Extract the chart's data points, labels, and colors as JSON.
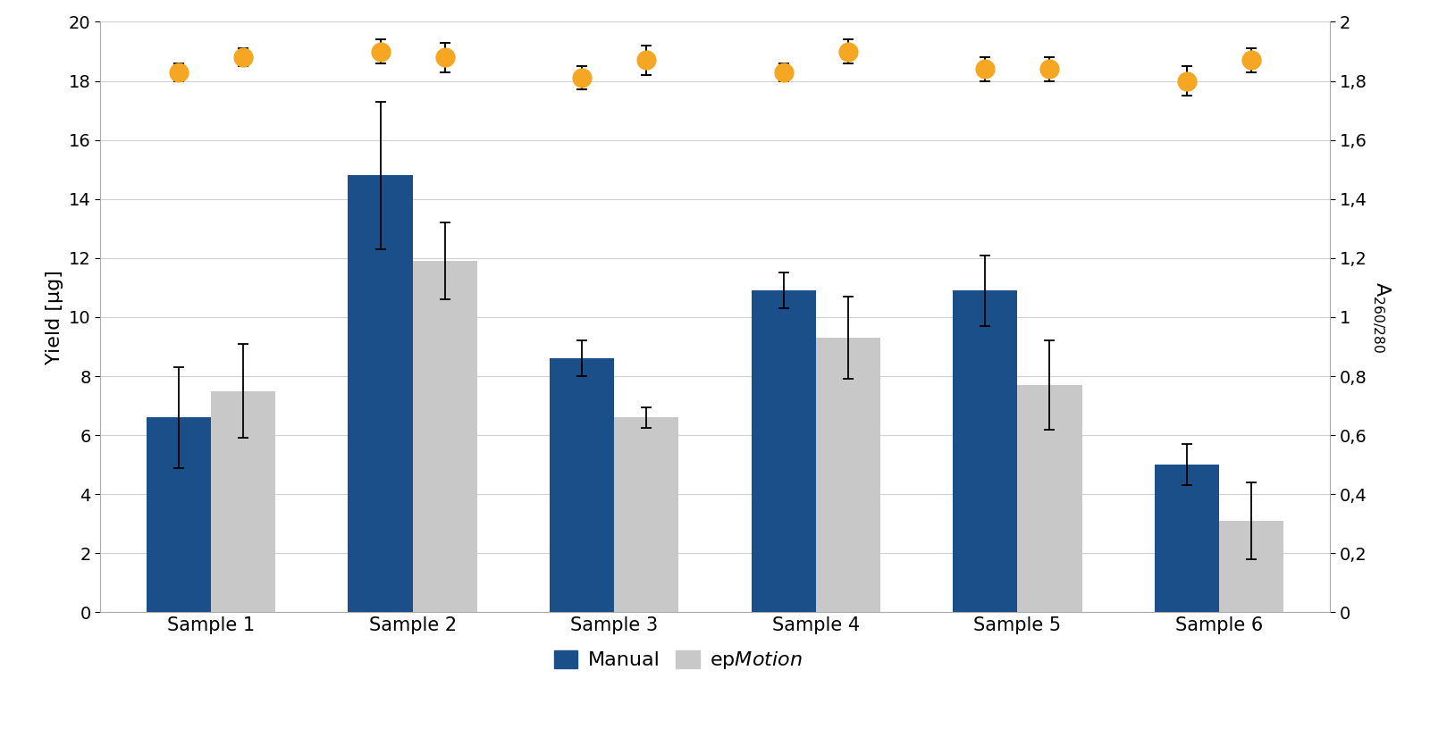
{
  "categories": [
    "Sample 1",
    "Sample 2",
    "Sample 3",
    "Sample 4",
    "Sample 5",
    "Sample 6"
  ],
  "manual_yield": [
    6.6,
    14.8,
    8.6,
    10.9,
    10.9,
    5.0
  ],
  "manual_yield_err": [
    1.7,
    2.5,
    0.6,
    0.6,
    1.2,
    0.7
  ],
  "epmotion_yield": [
    7.5,
    11.9,
    6.6,
    9.3,
    7.7,
    3.1
  ],
  "epmotion_yield_err": [
    1.6,
    1.3,
    0.35,
    1.4,
    1.5,
    1.3
  ],
  "manual_a260": [
    1.83,
    1.9,
    1.81,
    1.83,
    1.84,
    1.8
  ],
  "manual_a260_err": [
    0.03,
    0.04,
    0.04,
    0.03,
    0.04,
    0.05
  ],
  "epmotion_a260": [
    1.88,
    1.88,
    1.87,
    1.9,
    1.84,
    1.87
  ],
  "epmotion_a260_err": [
    0.03,
    0.05,
    0.05,
    0.04,
    0.04,
    0.04
  ],
  "bar_color_manual": "#1a4f8a",
  "bar_color_epmotion": "#c8c8c8",
  "dot_color": "#f5a623",
  "ylim_left": [
    0,
    20
  ],
  "ylim_right": [
    0,
    2
  ],
  "yticks_left": [
    0,
    2,
    4,
    6,
    8,
    10,
    12,
    14,
    16,
    18,
    20
  ],
  "yticks_right_vals": [
    0,
    0.2,
    0.4,
    0.6,
    0.8,
    1.0,
    1.2,
    1.4,
    1.6,
    1.8,
    2.0
  ],
  "yticks_right_labels": [
    "0",
    "0,2",
    "0,4",
    "0,6",
    "0,8",
    "1",
    "1,2",
    "1,4",
    "1,6",
    "1,8",
    "2"
  ],
  "bar_width": 0.32,
  "figsize": [
    16.0,
    8.16
  ],
  "dpi": 100,
  "background_color": "#ffffff",
  "grid_color": "#d0d0d0",
  "spine_color": "#aaaaaa"
}
